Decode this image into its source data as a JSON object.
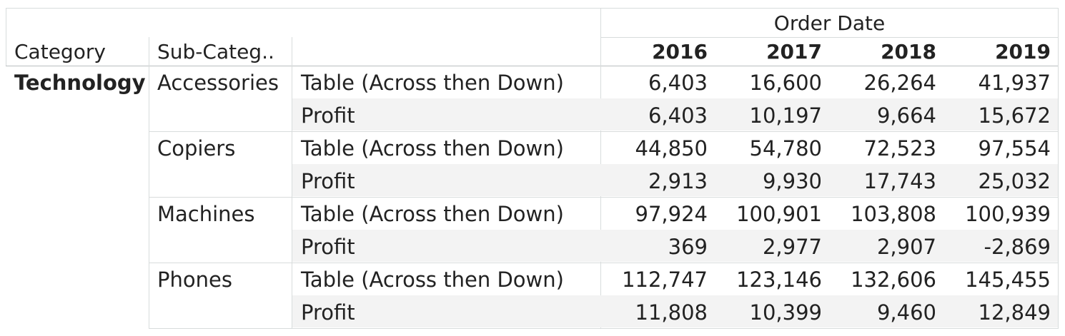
{
  "chart_data": {
    "type": "table",
    "column_header": "Order Date",
    "row_headers": [
      "Category",
      "Sub-Categ.."
    ],
    "columns": [
      "2016",
      "2017",
      "2018",
      "2019"
    ],
    "category": "Technology",
    "groups": [
      {
        "sub_category": "Accessories",
        "rows": [
          {
            "measure": "Table (Across then Down)",
            "values": [
              "6,403",
              "16,600",
              "26,264",
              "41,937"
            ]
          },
          {
            "measure": "Profit",
            "values": [
              "6,403",
              "10,197",
              "9,664",
              "15,672"
            ]
          }
        ]
      },
      {
        "sub_category": "Copiers",
        "rows": [
          {
            "measure": "Table (Across then Down)",
            "values": [
              "44,850",
              "54,780",
              "72,523",
              "97,554"
            ]
          },
          {
            "measure": "Profit",
            "values": [
              "2,913",
              "9,930",
              "17,743",
              "25,032"
            ]
          }
        ]
      },
      {
        "sub_category": "Machines",
        "rows": [
          {
            "measure": "Table (Across then Down)",
            "values": [
              "97,924",
              "100,901",
              "103,808",
              "100,939"
            ]
          },
          {
            "measure": "Profit",
            "values": [
              "369",
              "2,977",
              "2,907",
              "-2,869"
            ]
          }
        ]
      },
      {
        "sub_category": "Phones",
        "rows": [
          {
            "measure": "Table (Across then Down)",
            "values": [
              "112,747",
              "123,146",
              "132,606",
              "145,455"
            ]
          },
          {
            "measure": "Profit",
            "values": [
              "11,808",
              "10,399",
              "9,460",
              "12,849"
            ]
          }
        ]
      }
    ]
  }
}
